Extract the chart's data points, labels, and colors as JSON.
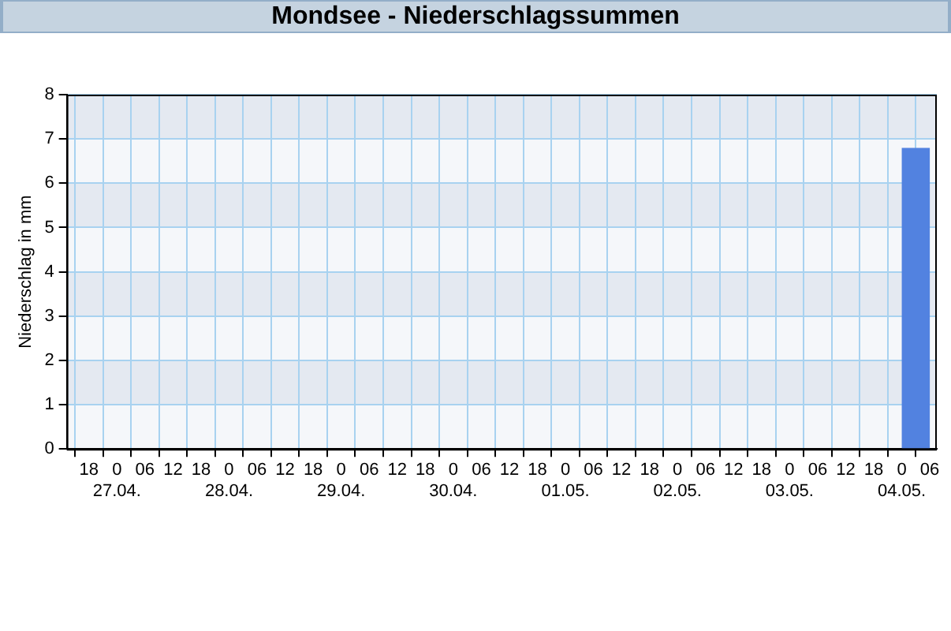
{
  "chart_data": {
    "type": "histogram",
    "title": "Mondsee - Niederschlagssummen",
    "ylabel": "Niederschlag in mm",
    "bins": [
      "--05-04T00:00",
      "--05-04T06:00"
    ],
    "values": [
      6.8
    ],
    "color": "#5282e0",
    "xlim": [
      "--04-26T13:15",
      "--05-04T07:30"
    ],
    "xticks": [
      {
        "value": "--04-26T18:00",
        "label": "18"
      },
      {
        "value": "--04-27T00:00",
        "label": "0\n27.04."
      },
      {
        "value": "--04-27T06:00",
        "label": "06"
      },
      {
        "value": "--04-27T12:00",
        "label": "12"
      },
      {
        "value": "--04-27T18:00",
        "label": "18"
      },
      {
        "value": "--04-28T00:00",
        "label": "0\n28.04."
      },
      {
        "value": "--04-28T06:00",
        "label": "06"
      },
      {
        "value": "--04-28T12:00",
        "label": "12"
      },
      {
        "value": "--04-28T18:00",
        "label": "18"
      },
      {
        "value": "--04-29T00:00",
        "label": "0\n29.04."
      },
      {
        "value": "--04-29T06:00",
        "label": "06"
      },
      {
        "value": "--04-29T12:00",
        "label": "12"
      },
      {
        "value": "--04-29T18:00",
        "label": "18"
      },
      {
        "value": "--04-30T00:00",
        "label": "0\n30.04."
      },
      {
        "value": "--04-30T06:00",
        "label": "06"
      },
      {
        "value": "--04-30T12:00",
        "label": "12"
      },
      {
        "value": "--04-30T18:00",
        "label": "18"
      },
      {
        "value": "--05-01T00:00",
        "label": "0\n01.05."
      },
      {
        "value": "--05-01T06:00",
        "label": "06"
      },
      {
        "value": "--05-01T12:00",
        "label": "12"
      },
      {
        "value": "--05-01T18:00",
        "label": "18"
      },
      {
        "value": "--05-02T00:00",
        "label": "0\n02.05."
      },
      {
        "value": "--05-02T06:00",
        "label": "06"
      },
      {
        "value": "--05-02T12:00",
        "label": "12"
      },
      {
        "value": "--05-02T18:00",
        "label": "18"
      },
      {
        "value": "--05-03T00:00",
        "label": "0\n03.05."
      },
      {
        "value": "--05-03T06:00",
        "label": "06"
      },
      {
        "value": "--05-03T12:00",
        "label": "12"
      },
      {
        "value": "--05-03T18:00",
        "label": "18"
      },
      {
        "value": "--05-04T00:00",
        "label": "0\n04.05."
      },
      {
        "value": "--05-04T06:00",
        "label": "06"
      }
    ],
    "ylim": [
      0,
      8
    ],
    "yticks": [
      0,
      1,
      2,
      3,
      4,
      5,
      6,
      7,
      8
    ],
    "grid": true
  }
}
